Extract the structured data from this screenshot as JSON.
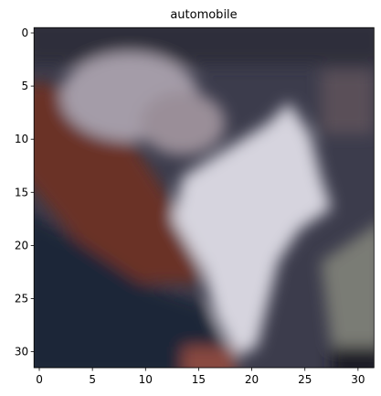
{
  "chart_data": {
    "type": "image",
    "title": "automobile",
    "xlim": [
      -0.5,
      31.5
    ],
    "ylim": [
      31.5,
      -0.5
    ],
    "xticks": [
      0,
      5,
      10,
      15,
      20,
      25,
      30
    ],
    "yticks": [
      0,
      5,
      10,
      15,
      20,
      25,
      30
    ]
  }
}
